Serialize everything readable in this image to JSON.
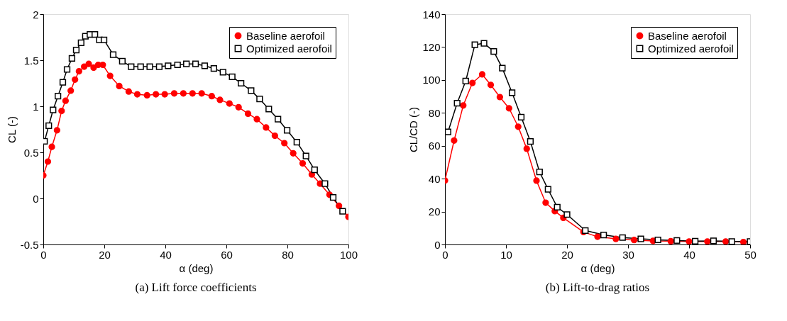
{
  "chart_data": [
    {
      "type": "line",
      "title": "(a) Lift force coefficients",
      "xlabel": "α (deg)",
      "ylabel": "CL (-)",
      "xlim": [
        0,
        100
      ],
      "ylim": [
        -0.5,
        2
      ],
      "xticks": [
        0,
        20,
        40,
        60,
        80,
        100
      ],
      "yticks": [
        -0.5,
        0,
        0.5,
        1,
        1.5,
        2
      ],
      "grid": false,
      "legend": "top right",
      "line_style": "solid",
      "series": [
        {
          "name": "Baseline aerofoil",
          "color": "#ff0000",
          "marker": "circle",
          "x": [
            0,
            1.5,
            2.8,
            4.5,
            6.0,
            7.3,
            9.0,
            10.4,
            11.7,
            13.4,
            14.9,
            16.5,
            18.0,
            19.5,
            21.9,
            24.9,
            28.0,
            30.8,
            34.0,
            36.9,
            39.8,
            42.9,
            45.9,
            48.9,
            51.9,
            55.2,
            57.9,
            61.0,
            64.0,
            67.1,
            70.0,
            73.0,
            75.9,
            79.0,
            81.9,
            85.0,
            88.0,
            90.7,
            93.8,
            96.9,
            100
          ],
          "values": [
            0.25,
            0.4,
            0.56,
            0.74,
            0.95,
            1.06,
            1.17,
            1.29,
            1.38,
            1.43,
            1.46,
            1.42,
            1.45,
            1.45,
            1.33,
            1.22,
            1.16,
            1.13,
            1.12,
            1.13,
            1.13,
            1.14,
            1.14,
            1.14,
            1.14,
            1.11,
            1.07,
            1.03,
            0.99,
            0.92,
            0.86,
            0.77,
            0.68,
            0.6,
            0.49,
            0.38,
            0.26,
            0.16,
            0.04,
            -0.08,
            -0.2
          ]
        },
        {
          "name": "Optimized aerofoil",
          "color": "#000000",
          "marker": "square",
          "x": [
            0.4,
            1.8,
            3.2,
            4.8,
            6.4,
            7.8,
            9.4,
            10.8,
            12.4,
            13.8,
            15.3,
            16.9,
            18.4,
            19.9,
            22.9,
            25.9,
            28.8,
            31.9,
            34.9,
            38.0,
            40.9,
            44.0,
            46.9,
            49.9,
            52.9,
            55.9,
            58.9,
            61.9,
            64.8,
            68.1,
            70.9,
            73.9,
            76.9,
            79.9,
            83.1,
            86.1,
            88.9,
            92.3,
            95.0,
            98.1
          ],
          "values": [
            0.62,
            0.79,
            0.96,
            1.11,
            1.26,
            1.4,
            1.52,
            1.61,
            1.69,
            1.76,
            1.78,
            1.78,
            1.72,
            1.72,
            1.56,
            1.49,
            1.43,
            1.43,
            1.43,
            1.43,
            1.44,
            1.45,
            1.46,
            1.46,
            1.44,
            1.41,
            1.37,
            1.32,
            1.25,
            1.17,
            1.08,
            0.97,
            0.86,
            0.74,
            0.61,
            0.46,
            0.31,
            0.16,
            0.01,
            -0.14
          ]
        }
      ]
    },
    {
      "type": "line",
      "title": "(b) Lift-to-drag ratios",
      "xlabel": "α (deg)",
      "ylabel": "CL/CD (-)",
      "xlim": [
        0,
        50
      ],
      "ylim": [
        0,
        140
      ],
      "xticks": [
        0,
        10,
        20,
        30,
        40,
        50
      ],
      "yticks": [
        0,
        20,
        40,
        60,
        80,
        100,
        120,
        140
      ],
      "grid": false,
      "legend": "top right",
      "line_style": "solid",
      "series": [
        {
          "name": "Baseline aerofoil",
          "color": "#ff0000",
          "marker": "circle",
          "x": [
            0,
            1.5,
            3.0,
            4.5,
            6.1,
            7.5,
            9.0,
            10.5,
            12.0,
            13.4,
            15.0,
            16.5,
            18.0,
            19.4,
            22.7,
            25.0,
            28.0,
            31.0,
            34.1,
            37.0,
            40.0,
            43.0,
            46.0,
            48.9
          ],
          "values": [
            38.9,
            63.2,
            84.5,
            98.2,
            103.4,
            97.0,
            89.6,
            82.8,
            71.6,
            58.2,
            38.8,
            25.4,
            20.3,
            16.2,
            7.6,
            4.7,
            3.4,
            2.7,
            2.2,
            2.0,
            1.8,
            1.8,
            1.8,
            1.5
          ]
        },
        {
          "name": "Optimized aerofoil",
          "color": "#000000",
          "marker": "square",
          "x": [
            0.5,
            2.0,
            3.4,
            4.9,
            6.4,
            8.0,
            9.4,
            11.0,
            12.5,
            14.0,
            15.5,
            16.9,
            18.4,
            20.0,
            23.0,
            26.0,
            29.1,
            32.1,
            34.9,
            38.0,
            41.0,
            44.0,
            47.0,
            50.0
          ],
          "values": [
            68.4,
            85.9,
            99.3,
            121.4,
            122.3,
            117.3,
            107.2,
            92.2,
            77.4,
            62.6,
            44.1,
            33.5,
            22.7,
            18.2,
            8.5,
            5.8,
            4.2,
            3.4,
            2.8,
            2.4,
            2.0,
            2.2,
            1.8,
            1.8
          ]
        }
      ]
    }
  ]
}
